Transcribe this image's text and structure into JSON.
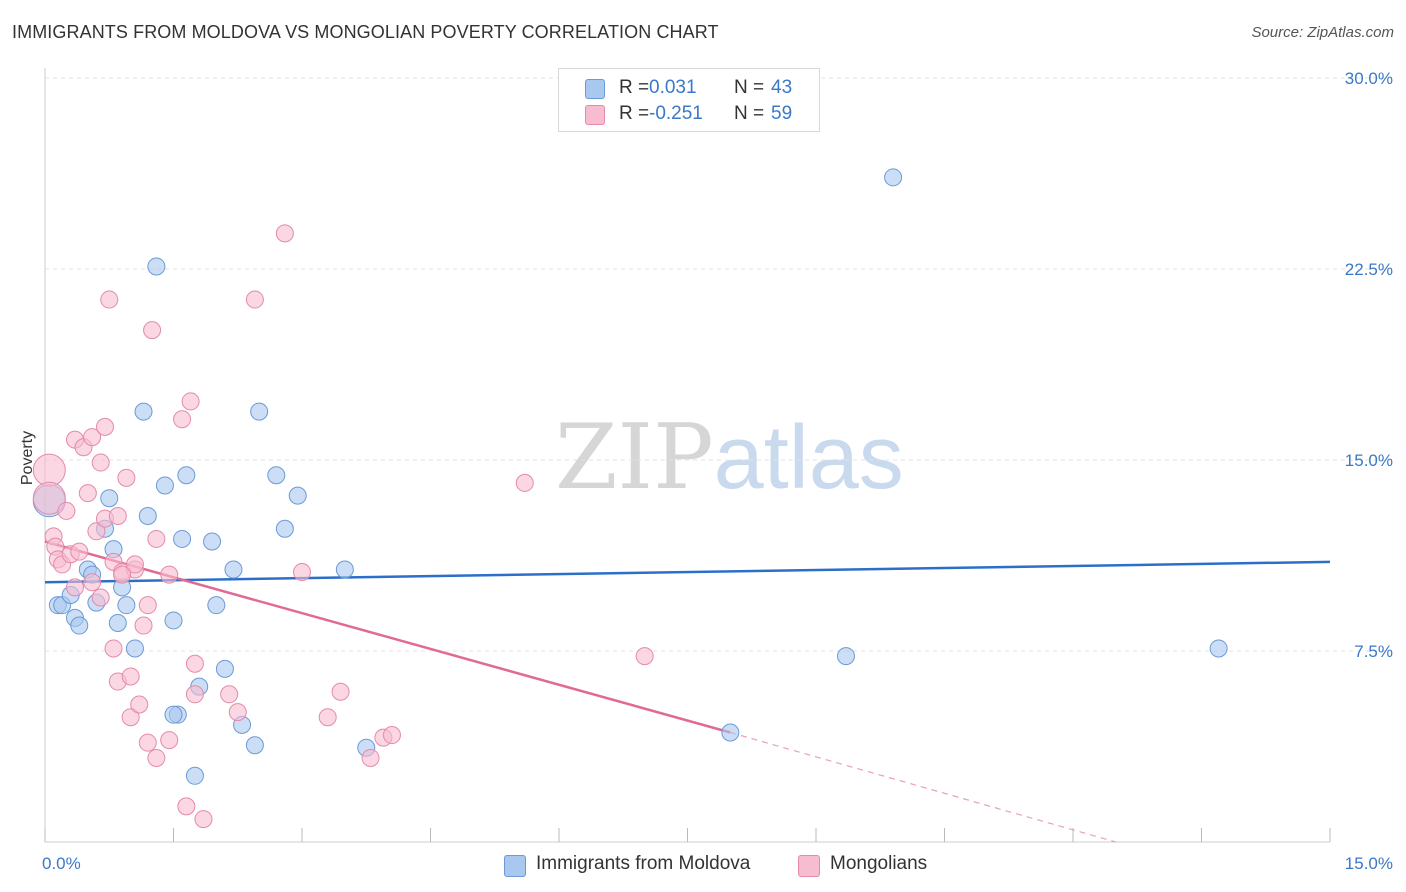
{
  "header": {
    "title": "IMMIGRANTS FROM MOLDOVA VS MONGOLIAN POVERTY CORRELATION CHART",
    "source": "Source: ZipAtlas.com"
  },
  "watermark": {
    "zip": "ZIP",
    "atlas": "atlas"
  },
  "stats": [
    {
      "r_label": "R =",
      "r_value": "0.031",
      "n_label": "N =",
      "n_value": "43",
      "color": "#a9c8ef",
      "border": "#6c9ad6"
    },
    {
      "r_label": "R =",
      "r_value": "-0.251",
      "n_label": "N =",
      "n_value": "59",
      "color": "#f7bcd0",
      "border": "#e58aaa"
    }
  ],
  "legend": [
    {
      "label": "Immigrants from Moldova",
      "color": "#a9c8ef",
      "border": "#6c9ad6"
    },
    {
      "label": "Mongolians",
      "color": "#f7bcd0",
      "border": "#e58aaa"
    }
  ],
  "chart_data": {
    "type": "scatter",
    "title": "IMMIGRANTS FROM MOLDOVA VS MONGOLIAN POVERTY CORRELATION CHART",
    "xlabel": "",
    "ylabel": "Poverty",
    "xlim": [
      0,
      15
    ],
    "ylim": [
      0,
      30
    ],
    "x_tick_labels": [
      {
        "value": 0,
        "label": "0.0%"
      },
      {
        "value": 15,
        "label": "15.0%"
      }
    ],
    "y_tick_labels": [
      {
        "value": 7.5,
        "label": "7.5%"
      },
      {
        "value": 15,
        "label": "15.0%"
      },
      {
        "value": 22.5,
        "label": "22.5%"
      },
      {
        "value": 30,
        "label": "30.0%"
      }
    ],
    "x_minor_ticks": [
      0,
      1.5,
      3,
      4.5,
      6,
      7.5,
      9,
      10.5,
      12,
      13.5,
      15
    ],
    "grid": true,
    "series": [
      {
        "name": "Immigrants from Moldova",
        "color": "#a9c8ef",
        "edge": "#6c9ad6",
        "trend": {
          "x": [
            0,
            15
          ],
          "y": [
            10.2,
            11.0
          ],
          "color": "#2c6fc9"
        },
        "points": [
          [
            0.05,
            13.4
          ],
          [
            0.15,
            9.3
          ],
          [
            0.2,
            9.3
          ],
          [
            0.3,
            9.7
          ],
          [
            0.35,
            8.8
          ],
          [
            0.4,
            8.5
          ],
          [
            0.5,
            10.7
          ],
          [
            0.55,
            10.5
          ],
          [
            0.6,
            9.4
          ],
          [
            0.75,
            13.5
          ],
          [
            0.8,
            11.5
          ],
          [
            0.85,
            8.6
          ],
          [
            0.9,
            10.0
          ],
          [
            0.95,
            9.3
          ],
          [
            1.05,
            7.6
          ],
          [
            1.15,
            16.9
          ],
          [
            1.2,
            12.8
          ],
          [
            1.3,
            22.6
          ],
          [
            1.4,
            14.0
          ],
          [
            1.5,
            8.7
          ],
          [
            1.55,
            5.0
          ],
          [
            1.6,
            11.9
          ],
          [
            1.65,
            14.4
          ],
          [
            1.75,
            2.6
          ],
          [
            1.8,
            6.1
          ],
          [
            1.95,
            11.8
          ],
          [
            2.0,
            9.3
          ],
          [
            2.1,
            6.8
          ],
          [
            2.2,
            10.7
          ],
          [
            2.3,
            4.6
          ],
          [
            2.45,
            3.8
          ],
          [
            2.5,
            16.9
          ],
          [
            2.7,
            14.4
          ],
          [
            2.8,
            12.3
          ],
          [
            2.95,
            13.6
          ],
          [
            3.5,
            10.7
          ],
          [
            3.75,
            3.7
          ],
          [
            0.7,
            12.3
          ],
          [
            1.5,
            5.0
          ],
          [
            9.9,
            26.1
          ],
          [
            9.35,
            7.3
          ],
          [
            13.7,
            7.6
          ],
          [
            8.0,
            4.3
          ]
        ]
      },
      {
        "name": "Mongolians",
        "color": "#f7bcd0",
        "edge": "#e58aaa",
        "trend": {
          "x": [
            0,
            8.0
          ],
          "y": [
            11.8,
            4.3
          ],
          "color": "#e06a95"
        },
        "trend_ext": {
          "x": [
            8.0,
            12.5
          ],
          "y": [
            4.3,
            0.0
          ],
          "color": "#e7a0bb"
        },
        "points": [
          [
            0.05,
            14.6
          ],
          [
            0.05,
            13.5
          ],
          [
            0.1,
            12.0
          ],
          [
            0.12,
            11.6
          ],
          [
            0.15,
            11.1
          ],
          [
            0.2,
            10.9
          ],
          [
            0.25,
            13.0
          ],
          [
            0.3,
            11.3
          ],
          [
            0.35,
            10.0
          ],
          [
            0.35,
            15.8
          ],
          [
            0.4,
            11.4
          ],
          [
            0.45,
            15.5
          ],
          [
            0.5,
            13.7
          ],
          [
            0.55,
            10.2
          ],
          [
            0.55,
            15.9
          ],
          [
            0.6,
            12.2
          ],
          [
            0.65,
            9.6
          ],
          [
            0.65,
            14.9
          ],
          [
            0.7,
            16.3
          ],
          [
            0.7,
            12.7
          ],
          [
            0.75,
            21.3
          ],
          [
            0.8,
            11.0
          ],
          [
            0.8,
            7.6
          ],
          [
            0.85,
            6.3
          ],
          [
            0.85,
            12.8
          ],
          [
            0.9,
            10.6
          ],
          [
            0.95,
            14.3
          ],
          [
            1.0,
            4.9
          ],
          [
            1.0,
            6.5
          ],
          [
            1.05,
            10.7
          ],
          [
            1.05,
            10.9
          ],
          [
            1.1,
            5.4
          ],
          [
            1.15,
            8.5
          ],
          [
            1.2,
            9.3
          ],
          [
            1.2,
            3.9
          ],
          [
            1.25,
            20.1
          ],
          [
            1.3,
            3.3
          ],
          [
            1.3,
            11.9
          ],
          [
            1.45,
            10.5
          ],
          [
            1.45,
            4.0
          ],
          [
            1.6,
            16.6
          ],
          [
            1.65,
            1.4
          ],
          [
            1.7,
            17.3
          ],
          [
            1.75,
            5.8
          ],
          [
            1.75,
            7.0
          ],
          [
            1.85,
            0.9
          ],
          [
            2.15,
            5.8
          ],
          [
            2.25,
            5.1
          ],
          [
            2.45,
            21.3
          ],
          [
            2.8,
            23.9
          ],
          [
            3.0,
            10.6
          ],
          [
            3.3,
            4.9
          ],
          [
            3.45,
            5.9
          ],
          [
            3.8,
            3.3
          ],
          [
            3.95,
            4.1
          ],
          [
            4.05,
            4.2
          ],
          [
            5.6,
            14.1
          ],
          [
            7.0,
            7.3
          ],
          [
            0.9,
            10.5
          ]
        ]
      }
    ]
  }
}
